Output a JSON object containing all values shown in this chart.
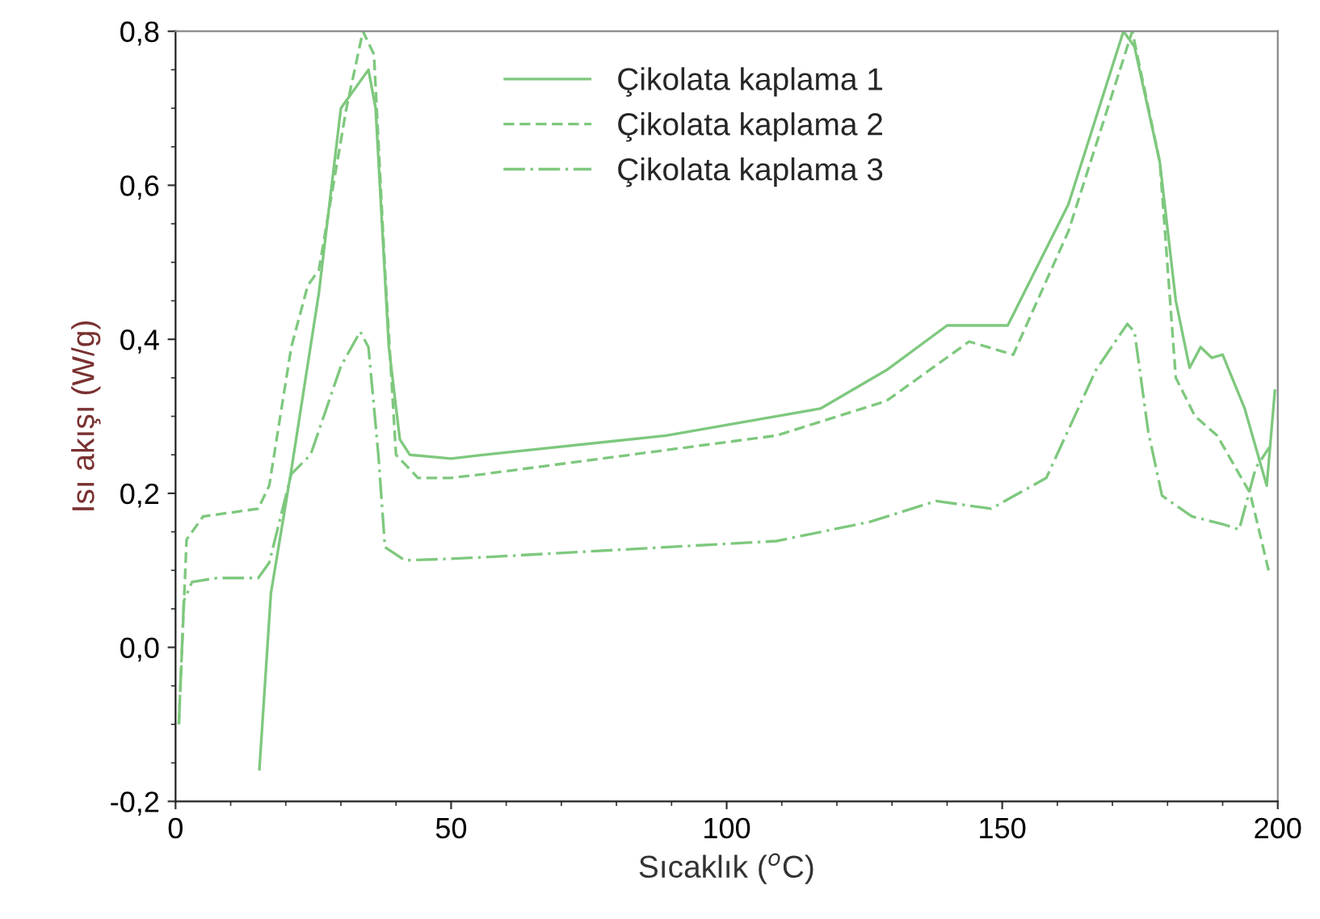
{
  "chart_data": {
    "type": "line",
    "xlabel": "Sıcaklık ($^{o}$C)",
    "ylabel": "Isı akışı (W/g)",
    "xlim": [
      0,
      200
    ],
    "xticks": [
      0,
      50,
      100,
      150,
      200
    ],
    "ylim": [
      -0.2,
      0.8
    ],
    "yticks": [
      {
        "value": -0.2,
        "label": "-0,2"
      },
      {
        "value": 0,
        "label": "0,0"
      },
      {
        "value": 0.2,
        "label": "0,2"
      },
      {
        "value": 0.4,
        "label": "0,4"
      },
      {
        "value": 0.6,
        "label": "0,6"
      },
      {
        "value": 0.8,
        "label": "0,8"
      }
    ],
    "legend": "top",
    "grid": false,
    "series": [
      {
        "name": "Çikolata kaplama 1",
        "color": "#7ec87e",
        "line_style": "solid",
        "x": [
          15.2,
          17.3,
          21,
          26,
          30,
          35,
          36.3,
          38.7,
          40.7,
          42.5,
          50,
          56,
          89,
          117,
          129,
          140,
          151,
          162,
          172,
          174,
          178.6,
          181.5,
          184,
          186,
          188,
          190,
          194,
          198,
          199.5
        ],
        "values": [
          -0.16,
          0.07,
          0.23,
          0.46,
          0.7,
          0.75,
          0.7,
          0.39,
          0.27,
          0.25,
          0.245,
          0.25,
          0.275,
          0.31,
          0.36,
          0.418,
          0.418,
          0.575,
          0.8,
          0.78,
          0.63,
          0.45,
          0.363,
          0.39,
          0.376,
          0.38,
          0.31,
          0.21,
          0.335
        ]
      },
      {
        "name": "Çikolata kaplama 2",
        "color": "#7ec87e",
        "line_style": "dashed",
        "x": [
          0.6,
          2,
          5,
          15,
          17,
          21,
          24,
          26,
          31,
          34,
          36,
          38,
          40,
          44,
          50,
          56,
          109,
          129,
          144,
          152,
          162,
          173.6,
          178.6,
          181.5,
          185,
          189,
          195,
          198.5
        ],
        "values": [
          -0.1,
          0.14,
          0.17,
          0.18,
          0.21,
          0.39,
          0.47,
          0.49,
          0.7,
          0.8,
          0.77,
          0.49,
          0.25,
          0.22,
          0.22,
          0.225,
          0.275,
          0.32,
          0.397,
          0.38,
          0.54,
          0.8,
          0.63,
          0.35,
          0.3,
          0.275,
          0.2,
          0.095
        ]
      },
      {
        "name": "Çikolata kaplama 3",
        "color": "#7ec87e",
        "line_style": "dashdot",
        "x": [
          0.6,
          1.5,
          3,
          7.5,
          15,
          17,
          21,
          24.5,
          30,
          33.5,
          35,
          36.8,
          38,
          41.6,
          50,
          56,
          109,
          126,
          138,
          148,
          158,
          167,
          172.7,
          174,
          176.5,
          179,
          184.4,
          190,
          193,
          196,
          198.5
        ],
        "values": [
          -0.1,
          0.06,
          0.085,
          0.09,
          0.09,
          0.11,
          0.225,
          0.25,
          0.365,
          0.41,
          0.39,
          0.25,
          0.13,
          0.113,
          0.115,
          0.117,
          0.138,
          0.163,
          0.19,
          0.18,
          0.22,
          0.36,
          0.42,
          0.41,
          0.28,
          0.197,
          0.17,
          0.16,
          0.153,
          0.233,
          0.26
        ]
      }
    ]
  }
}
